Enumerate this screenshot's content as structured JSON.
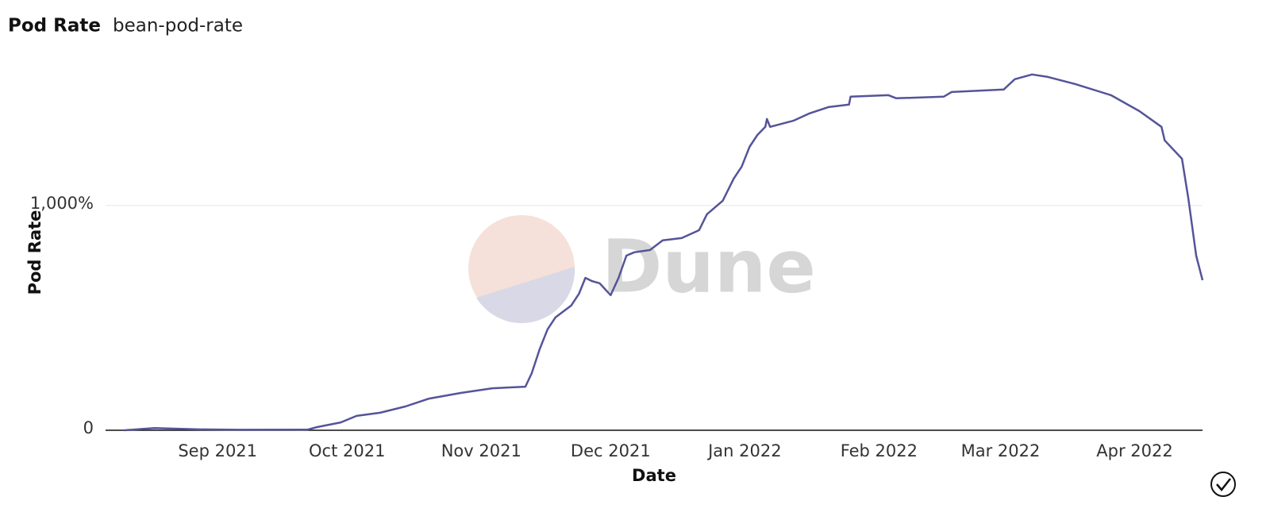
{
  "chart_data": {
    "type": "line",
    "title": "Pod Rate",
    "subtitle": "bean-pod-rate",
    "watermark": "Dune",
    "x_label": "Date",
    "y_label": "Pod Rate",
    "color": "#54549a",
    "grid": true,
    "xlim": [
      2021.595,
      2022.29
    ],
    "xticks": [
      {
        "value": 2021.666,
        "label": "Sep 2021"
      },
      {
        "value": 2021.748,
        "label": "Oct 2021"
      },
      {
        "value": 2021.833,
        "label": "Nov 2021"
      },
      {
        "value": 2021.915,
        "label": "Dec 2021"
      },
      {
        "value": 2022.0,
        "label": "Jan 2022"
      },
      {
        "value": 2022.085,
        "label": "Feb 2022"
      },
      {
        "value": 2022.162,
        "label": "Mar 2022"
      },
      {
        "value": 2022.247,
        "label": "Apr 2022"
      }
    ],
    "ylim": [
      0,
      1600
    ],
    "yticks": [
      0,
      {
        "value": 1000,
        "label": "1,000%"
      }
    ],
    "x": [
      2021.607,
      2021.626,
      2021.654,
      2021.679,
      2021.723,
      2021.729,
      2021.744,
      2021.754,
      2021.769,
      2021.785,
      2021.8,
      2021.82,
      2021.84,
      2021.861,
      2021.865,
      2021.87,
      2021.875,
      2021.88,
      2021.89,
      2021.895,
      2021.899,
      2021.903,
      2021.908,
      2021.915,
      2021.92,
      2021.925,
      2021.93,
      2021.94,
      2021.948,
      2021.96,
      2021.971,
      2021.976,
      2021.986,
      2021.993,
      2021.998,
      2022.003,
      2022.008,
      2022.013,
      2022.014,
      2022.016,
      2022.031,
      2022.041,
      2022.053,
      2022.066,
      2022.067,
      2022.091,
      2022.096,
      2022.126,
      2022.131,
      2022.164,
      2022.171,
      2022.182,
      2022.192,
      2022.209,
      2022.232,
      2022.25,
      2022.264,
      2022.266,
      2022.277,
      2022.281,
      2022.286,
      2022.29
    ],
    "values": [
      0,
      10,
      4,
      2,
      3,
      14,
      35,
      64,
      78,
      106,
      141,
      166,
      187,
      194,
      254,
      360,
      449,
      502,
      555,
      608,
      678,
      664,
      654,
      601,
      678,
      777,
      792,
      802,
      845,
      855,
      890,
      961,
      1021,
      1120,
      1173,
      1261,
      1314,
      1350,
      1385,
      1350,
      1378,
      1410,
      1438,
      1449,
      1484,
      1491,
      1477,
      1484,
      1505,
      1516,
      1562,
      1583,
      1572,
      1541,
      1491,
      1420,
      1350,
      1290,
      1208,
      1032,
      777,
      668
    ]
  }
}
